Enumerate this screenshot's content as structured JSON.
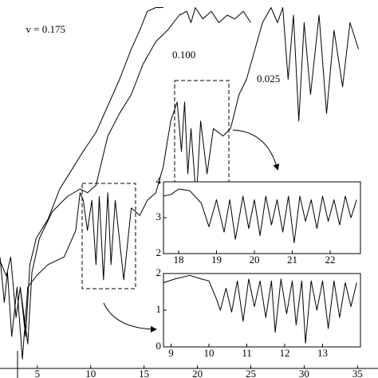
{
  "chart_data": [
    {
      "type": "line",
      "xlim": [
        1.5,
        35.5
      ],
      "ylim": [
        0,
        10
      ],
      "xticks": [
        5,
        10,
        15,
        20,
        25,
        30,
        35
      ],
      "series": [
        {
          "name": "v = 0.175",
          "color": "#000000",
          "x": [
            1.5,
            2.1,
            2.5,
            3.0,
            3.4,
            3.9,
            4.3,
            4.9,
            6.0,
            7.1,
            8.2,
            9.3,
            10.5,
            11.6,
            12.7,
            13.8,
            14.6,
            15.3,
            16.1,
            16.8
          ],
          "values": [
            3.1,
            2.7,
            3.2,
            1.6,
            2.4,
            1.1,
            3.0,
            3.7,
            4.2,
            5.0,
            5.5,
            6.0,
            6.5,
            7.2,
            7.9,
            8.7,
            9.2,
            9.7,
            9.8,
            9.8
          ]
        },
        {
          "name": "0.100",
          "color": "#000000",
          "x": [
            3.4,
            4.1,
            4.5,
            5.2,
            6.4,
            7.8,
            9.0,
            9.7,
            10.5,
            11.6,
            12.7,
            13.8,
            14.9,
            16.1,
            17.2,
            18.3,
            19.0,
            19.4,
            19.8,
            20.5,
            21.3,
            22.0,
            22.8,
            23.5,
            24.3,
            25.0
          ],
          "values": [
            2.4,
            0.9,
            2.8,
            3.7,
            4.4,
            4.8,
            5.0,
            4.9,
            5.1,
            6.4,
            7.0,
            7.5,
            8.3,
            8.9,
            9.2,
            9.6,
            9.7,
            9.4,
            9.8,
            9.5,
            9.7,
            9.4,
            9.6,
            9.5,
            9.7,
            9.4
          ]
        },
        {
          "name": "0.025",
          "color": "#000000",
          "x": [
            1.5,
            1.9,
            2.2,
            2.6,
            3.1,
            3.6,
            4.1,
            4.9,
            6.0,
            7.5,
            8.6,
            9.0,
            9.3,
            9.7,
            10.1,
            10.5,
            10.8,
            11.2,
            11.6,
            11.9,
            12.3,
            13.1,
            13.8,
            14.6,
            15.3,
            16.1,
            16.8,
            17.5,
            18.1,
            18.5,
            18.8,
            19.1,
            19.4,
            19.9,
            20.3,
            20.9,
            21.5,
            22.4,
            23.1,
            23.9,
            24.6,
            25.4,
            26.1,
            26.9,
            27.5,
            28.0,
            28.5,
            29.0,
            29.5,
            30.0,
            30.6,
            31.4,
            32.1,
            32.8,
            33.6,
            34.3,
            35.1
          ],
          "values": [
            3.2,
            2.0,
            2.8,
            1.1,
            2.4,
            0.5,
            2.4,
            2.7,
            3.0,
            3.2,
            3.9,
            4.9,
            4.7,
            3.9,
            4.7,
            3.0,
            4.8,
            2.6,
            4.9,
            3.0,
            4.7,
            2.6,
            4.5,
            4.3,
            4.7,
            4.9,
            5.6,
            6.8,
            7.3,
            6.0,
            7.3,
            5.4,
            6.6,
            4.7,
            6.8,
            5.4,
            6.6,
            6.4,
            6.6,
            7.5,
            7.9,
            8.7,
            9.4,
            9.8,
            9.4,
            9.8,
            7.9,
            9.6,
            6.8,
            9.4,
            7.5,
            9.6,
            7.0,
            9.2,
            7.7,
            9.4,
            8.7
          ]
        }
      ]
    },
    {
      "type": "line",
      "xlim": [
        17.6,
        22.8
      ],
      "ylim": [
        2,
        4
      ],
      "xticks": [
        18,
        19,
        20,
        21,
        22
      ],
      "yticks": [
        2,
        3,
        4
      ],
      "series": [
        {
          "color": "#000000",
          "x": [
            17.6,
            17.8,
            18.0,
            18.3,
            18.6,
            18.8,
            19.0,
            19.2,
            19.35,
            19.5,
            19.7,
            19.85,
            20.0,
            20.15,
            20.3,
            20.45,
            20.6,
            20.75,
            20.9,
            21.05,
            21.2,
            21.35,
            21.5,
            21.65,
            21.8,
            21.95,
            22.1,
            22.25,
            22.4,
            22.55,
            22.7
          ],
          "values": [
            3.6,
            3.65,
            3.8,
            3.75,
            3.4,
            2.75,
            3.5,
            2.6,
            3.5,
            2.4,
            3.6,
            2.7,
            3.5,
            2.5,
            3.6,
            2.8,
            3.5,
            2.6,
            3.6,
            2.3,
            3.6,
            2.9,
            3.5,
            2.7,
            3.6,
            2.9,
            3.5,
            2.8,
            3.6,
            3.0,
            3.5
          ]
        }
      ]
    },
    {
      "type": "line",
      "xlim": [
        8.8,
        14.0
      ],
      "ylim": [
        0,
        2
      ],
      "xticks": [
        9,
        10,
        11,
        12,
        13
      ],
      "yticks": [
        0,
        1,
        2
      ],
      "series": [
        {
          "color": "#000000",
          "x": [
            8.8,
            9.1,
            9.5,
            9.8,
            10.0,
            10.2,
            10.3,
            10.45,
            10.6,
            10.75,
            10.9,
            11.05,
            11.2,
            11.35,
            11.5,
            11.65,
            11.75,
            11.9,
            12.05,
            12.2,
            12.3,
            12.45,
            12.55,
            12.7,
            12.85,
            13.0,
            13.15,
            13.3,
            13.45,
            13.6,
            13.75,
            13.9
          ],
          "values": [
            1.75,
            1.85,
            1.95,
            1.85,
            1.8,
            1.3,
            1.0,
            1.6,
            0.95,
            1.8,
            0.7,
            1.85,
            1.1,
            1.8,
            0.8,
            1.8,
            0.4,
            1.85,
            0.9,
            1.8,
            0.6,
            1.8,
            0.1,
            1.8,
            1.0,
            1.8,
            0.5,
            1.8,
            0.8,
            1.75,
            1.1,
            1.75
          ]
        }
      ]
    }
  ]
}
